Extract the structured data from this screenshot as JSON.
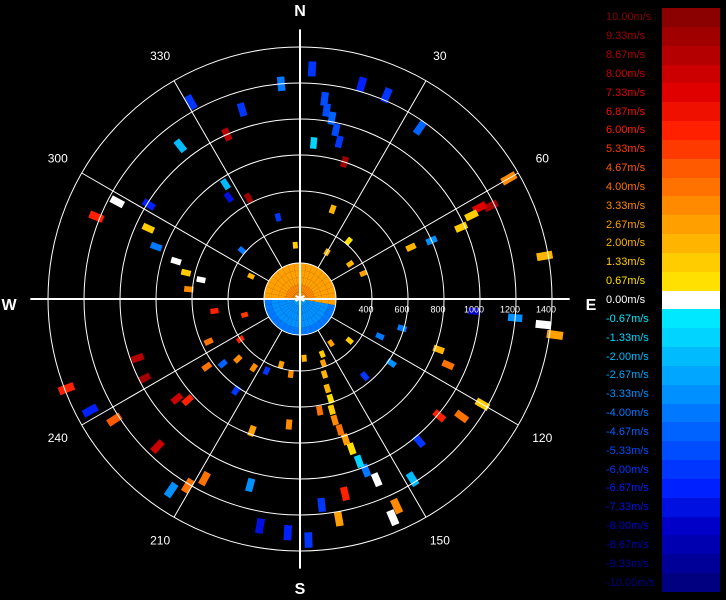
{
  "chart_data": {
    "type": "polar-scatter",
    "title": "",
    "compass": {
      "north": "N",
      "south": "S",
      "east": "E",
      "west": "W"
    },
    "bearing_labels": [
      {
        "text": "30",
        "deg": 30
      },
      {
        "text": "60",
        "deg": 60
      },
      {
        "text": "120",
        "deg": 120
      },
      {
        "text": "150",
        "deg": 150
      },
      {
        "text": "210",
        "deg": 210
      },
      {
        "text": "240",
        "deg": 240
      },
      {
        "text": "300",
        "deg": 300
      },
      {
        "text": "330",
        "deg": 330
      }
    ],
    "range_labels": [
      "400",
      "600",
      "800",
      "1000",
      "1200",
      "1400"
    ],
    "range_max": 1400,
    "range_rings": [
      200,
      400,
      600,
      800,
      1000,
      1200,
      1400
    ],
    "legend": [
      {
        "label": "10.00m/s",
        "color": "#8b0000"
      },
      {
        "label": "9.33m/s",
        "color": "#a00000"
      },
      {
        "label": "8.67m/s",
        "color": "#b40000"
      },
      {
        "label": "8.00m/s",
        "color": "#cc0000"
      },
      {
        "label": "7.33m/s",
        "color": "#e00000"
      },
      {
        "label": "6.87m/s",
        "color": "#f01000"
      },
      {
        "label": "6.00m/s",
        "color": "#ff2000"
      },
      {
        "label": "5.33m/s",
        "color": "#ff3a00"
      },
      {
        "label": "4.67m/s",
        "color": "#ff5a00"
      },
      {
        "label": "4.00m/s",
        "color": "#ff7200"
      },
      {
        "label": "3.33m/s",
        "color": "#ff8a00"
      },
      {
        "label": "2.67m/s",
        "color": "#ffa000"
      },
      {
        "label": "2.00m/s",
        "color": "#ffb400"
      },
      {
        "label": "1.33m/s",
        "color": "#ffcc00"
      },
      {
        "label": "0.67m/s",
        "color": "#ffe000"
      },
      {
        "label": "0.00m/s",
        "color": "#ffffff"
      },
      {
        "label": "-0.67m/s",
        "color": "#00e8ff"
      },
      {
        "label": "-1.33m/s",
        "color": "#00d4ff"
      },
      {
        "label": "-2.00m/s",
        "color": "#00bcff"
      },
      {
        "label": "-2.67m/s",
        "color": "#00a6ff"
      },
      {
        "label": "-3.33m/s",
        "color": "#0090ff"
      },
      {
        "label": "-4.00m/s",
        "color": "#0078ff"
      },
      {
        "label": "-4.67m/s",
        "color": "#0062ff"
      },
      {
        "label": "-5.33m/s",
        "color": "#004cff"
      },
      {
        "label": "-6.00m/s",
        "color": "#0036ff"
      },
      {
        "label": "-6.67m/s",
        "color": "#0020ff"
      },
      {
        "label": "-7.33m/s",
        "color": "#0010e0"
      },
      {
        "label": "-8.00m/s",
        "color": "#0000c8"
      },
      {
        "label": "-8.67m/s",
        "color": "#0000b0"
      },
      {
        "label": "-9.33m/s",
        "color": "#000098"
      },
      {
        "label": "-10.00m/s",
        "color": "#000080"
      }
    ],
    "points": [
      {
        "az": 3,
        "range": 1280,
        "v": -6.0
      },
      {
        "az": 7,
        "range": 1120,
        "v": -5.3
      },
      {
        "az": 8,
        "range": 1060,
        "v": -5.3
      },
      {
        "az": 10,
        "range": 1020,
        "v": -4.7
      },
      {
        "az": 12,
        "range": 960,
        "v": -5.3
      },
      {
        "az": 14,
        "range": 900,
        "v": -6.0
      },
      {
        "az": 18,
        "range": 800,
        "v": 9.3
      },
      {
        "az": 16,
        "range": 1240,
        "v": -6.7
      },
      {
        "az": 23,
        "range": 1230,
        "v": -6.0
      },
      {
        "az": 35,
        "range": 1160,
        "v": -4.7
      },
      {
        "az": 5,
        "range": 870,
        "v": -1.3
      },
      {
        "az": 355,
        "range": 1200,
        "v": -4.0
      },
      {
        "az": 343,
        "range": 1100,
        "v": -6.0
      },
      {
        "az": 336,
        "range": 1000,
        "v": 8.7
      },
      {
        "az": 331,
        "range": 1250,
        "v": -6.0
      },
      {
        "az": 322,
        "range": 1080,
        "v": -2.0
      },
      {
        "az": 327,
        "range": 760,
        "v": -2.0
      },
      {
        "az": 333,
        "range": 630,
        "v": 9.3
      },
      {
        "az": 325,
        "range": 690,
        "v": -7.3
      },
      {
        "az": 302,
        "range": 990,
        "v": -6.7
      },
      {
        "az": 298,
        "range": 1150,
        "v": 0.0
      },
      {
        "az": 292,
        "range": 1220,
        "v": 6.0
      },
      {
        "az": 295,
        "range": 930,
        "v": 1.3
      },
      {
        "az": 290,
        "range": 850,
        "v": -4.0
      },
      {
        "az": 287,
        "range": 720,
        "v": 0.0
      },
      {
        "az": 283,
        "range": 650,
        "v": 1.3
      },
      {
        "az": 281,
        "range": 560,
        "v": 0.0
      },
      {
        "az": 60,
        "range": 1340,
        "v": 3.3
      },
      {
        "az": 64,
        "range": 1180,
        "v": 9.3
      },
      {
        "az": 63,
        "range": 1120,
        "v": 7.3
      },
      {
        "az": 64,
        "range": 1060,
        "v": 1.3
      },
      {
        "az": 66,
        "range": 980,
        "v": 1.3
      },
      {
        "az": 66,
        "range": 800,
        "v": -3.3
      },
      {
        "az": 65,
        "range": 680,
        "v": 2.0
      },
      {
        "az": 80,
        "range": 1380,
        "v": 2.0
      },
      {
        "az": 95,
        "range": 1200,
        "v": -3.3
      },
      {
        "az": 98,
        "range": 1430,
        "v": 2.7
      },
      {
        "az": 96,
        "range": 1360,
        "v": 0.0
      },
      {
        "az": 94,
        "range": 970,
        "v": -8.0
      },
      {
        "az": 110,
        "range": 820,
        "v": 2.0
      },
      {
        "az": 114,
        "range": 900,
        "v": 4.0
      },
      {
        "az": 120,
        "range": 1170,
        "v": 1.3
      },
      {
        "az": 126,
        "range": 1110,
        "v": 4.0
      },
      {
        "az": 130,
        "range": 1010,
        "v": 6.0
      },
      {
        "az": 140,
        "range": 1030,
        "v": -6.0
      },
      {
        "az": 148,
        "range": 1180,
        "v": -2.0
      },
      {
        "az": 157,
        "range": 1320,
        "v": 0.0
      },
      {
        "az": 155,
        "range": 1270,
        "v": 3.3
      },
      {
        "az": 157,
        "range": 1090,
        "v": 0.0
      },
      {
        "az": 159,
        "range": 1020,
        "v": -4.0
      },
      {
        "az": 160,
        "range": 960,
        "v": -1.3
      },
      {
        "az": 161,
        "range": 880,
        "v": 0.7
      },
      {
        "az": 162,
        "range": 820,
        "v": 2.7
      },
      {
        "az": 163,
        "range": 760,
        "v": 4.0
      },
      {
        "az": 164,
        "range": 700,
        "v": 3.3
      },
      {
        "az": 164,
        "range": 640,
        "v": 1.3
      },
      {
        "az": 163,
        "range": 580,
        "v": 0.7
      },
      {
        "az": 163,
        "range": 520,
        "v": 2.0
      },
      {
        "az": 162,
        "range": 440,
        "v": 2.0
      },
      {
        "az": 160,
        "range": 380,
        "v": 2.7
      },
      {
        "az": 158,
        "range": 330,
        "v": 1.3
      },
      {
        "az": 170,
        "range": 1240,
        "v": 2.7
      },
      {
        "az": 174,
        "range": 1150,
        "v": -6.0
      },
      {
        "az": 167,
        "range": 1110,
        "v": 6.0
      },
      {
        "az": 178,
        "range": 1340,
        "v": -6.0
      },
      {
        "az": 183,
        "range": 1300,
        "v": -6.7
      },
      {
        "az": 190,
        "range": 1280,
        "v": -7.3
      },
      {
        "az": 195,
        "range": 1070,
        "v": -3.3
      },
      {
        "az": 208,
        "range": 1130,
        "v": 4.0
      },
      {
        "az": 211,
        "range": 1210,
        "v": 4.0
      },
      {
        "az": 214,
        "range": 1280,
        "v": -3.3
      },
      {
        "az": 224,
        "range": 1140,
        "v": 8.0
      },
      {
        "az": 228,
        "range": 840,
        "v": 6.0
      },
      {
        "az": 231,
        "range": 880,
        "v": 8.0
      },
      {
        "az": 242,
        "range": 1320,
        "v": -6.7
      },
      {
        "az": 249,
        "range": 1390,
        "v": 6.0
      },
      {
        "az": 237,
        "range": 1230,
        "v": 4.7
      },
      {
        "az": 243,
        "range": 970,
        "v": 9.3
      },
      {
        "az": 250,
        "range": 960,
        "v": 8.7
      },
      {
        "az": 234,
        "range": 640,
        "v": 4.0
      },
      {
        "az": 230,
        "range": 560,
        "v": -4.7
      },
      {
        "az": 226,
        "range": 480,
        "v": 3.3
      },
      {
        "az": 214,
        "range": 460,
        "v": 3.3
      },
      {
        "az": 205,
        "range": 440,
        "v": -6.0
      },
      {
        "az": 196,
        "range": 380,
        "v": 2.7
      },
      {
        "az": 187,
        "range": 420,
        "v": 3.3
      },
      {
        "az": 176,
        "range": 330,
        "v": 2.0
      },
      {
        "az": 145,
        "range": 300,
        "v": 2.7
      },
      {
        "az": 130,
        "range": 360,
        "v": 1.3
      },
      {
        "az": 236,
        "range": 400,
        "v": 6.0
      },
      {
        "az": 254,
        "range": 320,
        "v": 5.3
      },
      {
        "az": 115,
        "range": 490,
        "v": -4.0
      },
      {
        "az": 106,
        "range": 590,
        "v": -4.0
      },
      {
        "az": 40,
        "range": 420,
        "v": 0.7
      },
      {
        "az": 55,
        "range": 340,
        "v": 2.0
      },
      {
        "az": 68,
        "range": 380,
        "v": 2.7
      },
      {
        "az": 20,
        "range": 530,
        "v": 2.0
      },
      {
        "az": 345,
        "range": 470,
        "v": -6.0
      },
      {
        "az": 310,
        "range": 420,
        "v": -4.0
      },
      {
        "az": 295,
        "range": 300,
        "v": 2.0
      },
      {
        "az": 170,
        "range": 630,
        "v": 4.0
      },
      {
        "az": 185,
        "range": 700,
        "v": 3.3
      },
      {
        "az": 200,
        "range": 780,
        "v": 2.7
      },
      {
        "az": 215,
        "range": 620,
        "v": -6.0
      },
      {
        "az": 245,
        "range": 560,
        "v": 4.0
      },
      {
        "az": 262,
        "range": 480,
        "v": 6.0
      },
      {
        "az": 275,
        "range": 620,
        "v": 3.3
      },
      {
        "az": 140,
        "range": 560,
        "v": -6.0
      },
      {
        "az": 125,
        "range": 620,
        "v": -3.3
      },
      {
        "az": 355,
        "range": 300,
        "v": 1.3
      },
      {
        "az": 30,
        "range": 300,
        "v": 2.0
      }
    ]
  }
}
